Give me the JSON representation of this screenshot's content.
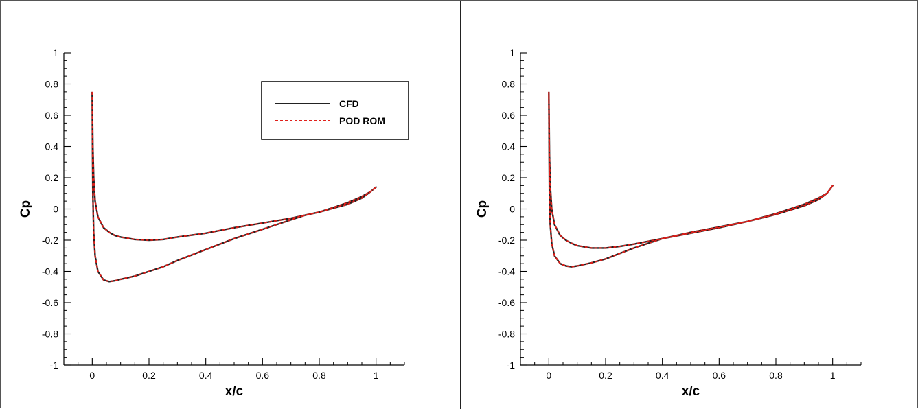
{
  "chart_data": [
    {
      "type": "line",
      "xlabel": "x/c",
      "ylabel": "Cp",
      "xlim": [
        -0.1,
        1.1
      ],
      "ylim": [
        -1,
        1
      ],
      "xticks": [
        "0",
        "0.2",
        "0.4",
        "0.6",
        "0.8",
        "1"
      ],
      "yticks": [
        "1",
        "0.8",
        "0.6",
        "0.4",
        "0.2",
        "0",
        "-0.2",
        "-0.4",
        "-0.6",
        "-0.8",
        "-1"
      ],
      "legend": {
        "placement": "top-right",
        "entries": [
          "CFD",
          "POD ROM"
        ]
      },
      "series": [
        {
          "name": "CFD",
          "style": "solid",
          "color": "#222222",
          "x": [
            0,
            0.002,
            0.005,
            0.01,
            0.02,
            0.04,
            0.06,
            0.08,
            0.1,
            0.15,
            0.2,
            0.25,
            0.3,
            0.4,
            0.5,
            0.6,
            0.7,
            0.8,
            0.9,
            0.95,
            0.98,
            1.0,
            0.98,
            0.95,
            0.9,
            0.84,
            0.8,
            0.75,
            0.7,
            0.6,
            0.5,
            0.4,
            0.3,
            0.25,
            0.2,
            0.15,
            0.1,
            0.08,
            0.06,
            0.04,
            0.02,
            0.01,
            0.005,
            0.002,
            0
          ],
          "y": [
            0.75,
            0.4,
            0.2,
            0.05,
            -0.05,
            -0.12,
            -0.15,
            -0.17,
            -0.18,
            -0.195,
            -0.2,
            -0.195,
            -0.18,
            -0.155,
            -0.12,
            -0.09,
            -0.06,
            -0.02,
            0.04,
            0.08,
            0.11,
            0.14,
            0.11,
            0.07,
            0.03,
            0.0,
            -0.02,
            -0.04,
            -0.07,
            -0.13,
            -0.19,
            -0.26,
            -0.33,
            -0.37,
            -0.4,
            -0.43,
            -0.45,
            -0.46,
            -0.465,
            -0.455,
            -0.4,
            -0.3,
            -0.15,
            0.1,
            0.75
          ]
        },
        {
          "name": "POD ROM",
          "style": "dashed",
          "color": "#e0201b",
          "x": [
            0,
            0.002,
            0.005,
            0.01,
            0.02,
            0.04,
            0.06,
            0.08,
            0.1,
            0.15,
            0.2,
            0.25,
            0.3,
            0.4,
            0.5,
            0.6,
            0.7,
            0.8,
            0.9,
            0.95,
            0.98,
            1.0,
            0.98,
            0.95,
            0.9,
            0.84,
            0.8,
            0.75,
            0.7,
            0.6,
            0.5,
            0.4,
            0.3,
            0.25,
            0.2,
            0.15,
            0.1,
            0.08,
            0.06,
            0.04,
            0.02,
            0.01,
            0.005,
            0.002,
            0
          ],
          "y": [
            0.75,
            0.4,
            0.2,
            0.05,
            -0.05,
            -0.12,
            -0.15,
            -0.17,
            -0.18,
            -0.195,
            -0.2,
            -0.195,
            -0.18,
            -0.155,
            -0.12,
            -0.09,
            -0.06,
            -0.02,
            0.04,
            0.08,
            0.11,
            0.14,
            0.11,
            0.07,
            0.03,
            0.0,
            -0.02,
            -0.04,
            -0.07,
            -0.13,
            -0.19,
            -0.26,
            -0.33,
            -0.37,
            -0.4,
            -0.43,
            -0.45,
            -0.46,
            -0.465,
            -0.455,
            -0.4,
            -0.3,
            -0.15,
            0.1,
            0.75
          ]
        }
      ]
    },
    {
      "type": "line",
      "xlabel": "x/c",
      "ylabel": "Cp",
      "xlim": [
        -0.1,
        1.1
      ],
      "ylim": [
        -1,
        1
      ],
      "xticks": [
        "0",
        "0.2",
        "0.4",
        "0.6",
        "0.8",
        "1"
      ],
      "yticks": [
        "1",
        "0.8",
        "0.6",
        "0.4",
        "0.2",
        "0",
        "-0.2",
        "-0.4",
        "-0.6",
        "-0.8",
        "-1"
      ],
      "series": [
        {
          "name": "CFD",
          "style": "solid",
          "color": "#222222",
          "x": [
            0,
            0.002,
            0.005,
            0.01,
            0.02,
            0.04,
            0.06,
            0.08,
            0.1,
            0.15,
            0.2,
            0.25,
            0.3,
            0.4,
            0.5,
            0.6,
            0.7,
            0.8,
            0.9,
            0.95,
            0.98,
            1.0,
            0.98,
            0.95,
            0.9,
            0.8,
            0.7,
            0.6,
            0.5,
            0.45,
            0.4,
            0.3,
            0.25,
            0.2,
            0.15,
            0.1,
            0.08,
            0.06,
            0.04,
            0.02,
            0.01,
            0.005,
            0.002,
            0
          ],
          "y": [
            0.75,
            0.35,
            0.15,
            0.0,
            -0.1,
            -0.17,
            -0.2,
            -0.22,
            -0.235,
            -0.25,
            -0.25,
            -0.24,
            -0.225,
            -0.19,
            -0.155,
            -0.12,
            -0.08,
            -0.03,
            0.03,
            0.07,
            0.1,
            0.15,
            0.1,
            0.06,
            0.02,
            -0.035,
            -0.08,
            -0.115,
            -0.15,
            -0.17,
            -0.19,
            -0.25,
            -0.285,
            -0.32,
            -0.345,
            -0.365,
            -0.37,
            -0.365,
            -0.35,
            -0.3,
            -0.22,
            -0.1,
            0.1,
            0.75
          ]
        },
        {
          "name": "POD ROM",
          "style": "dashed",
          "color": "#e0201b",
          "x": [
            0,
            0.002,
            0.005,
            0.01,
            0.02,
            0.04,
            0.06,
            0.08,
            0.1,
            0.15,
            0.2,
            0.25,
            0.3,
            0.4,
            0.5,
            0.6,
            0.7,
            0.8,
            0.9,
            0.95,
            0.98,
            1.0,
            0.98,
            0.95,
            0.9,
            0.8,
            0.7,
            0.6,
            0.5,
            0.45,
            0.4,
            0.3,
            0.25,
            0.2,
            0.15,
            0.1,
            0.08,
            0.06,
            0.04,
            0.02,
            0.01,
            0.005,
            0.002,
            0
          ],
          "y": [
            0.75,
            0.35,
            0.15,
            0.0,
            -0.1,
            -0.17,
            -0.2,
            -0.22,
            -0.235,
            -0.25,
            -0.25,
            -0.24,
            -0.225,
            -0.19,
            -0.155,
            -0.12,
            -0.08,
            -0.03,
            0.03,
            0.07,
            0.1,
            0.15,
            0.1,
            0.06,
            0.02,
            -0.035,
            -0.08,
            -0.115,
            -0.15,
            -0.17,
            -0.19,
            -0.25,
            -0.285,
            -0.32,
            -0.345,
            -0.365,
            -0.37,
            -0.365,
            -0.35,
            -0.3,
            -0.22,
            -0.1,
            0.1,
            0.75
          ]
        }
      ]
    }
  ]
}
